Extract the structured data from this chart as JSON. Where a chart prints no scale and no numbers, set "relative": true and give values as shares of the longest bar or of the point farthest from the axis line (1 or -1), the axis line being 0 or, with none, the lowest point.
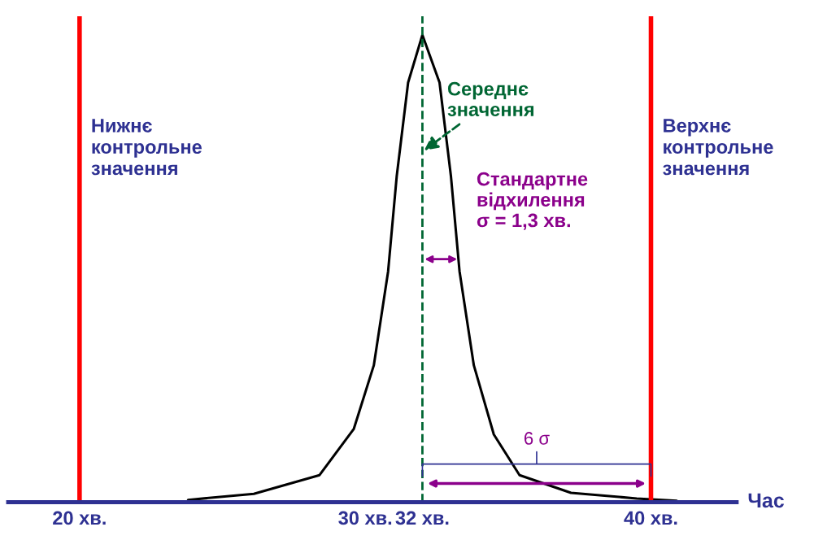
{
  "chart_data": {
    "type": "line",
    "relative": true,
    "xlabel": "Час",
    "x": [
      23.8,
      26.1,
      28.4,
      29.6,
      30.3,
      30.8,
      31.1,
      31.5,
      32.0,
      32.6,
      33.0,
      33.3,
      33.8,
      34.5,
      35.4,
      37.2,
      39.5,
      40.9
    ],
    "series": [
      {
        "color": "#000000",
        "values": [
          0.005,
          0.018,
          0.058,
          0.157,
          0.293,
          0.494,
          0.697,
          0.898,
          1.0,
          0.898,
          0.697,
          0.494,
          0.293,
          0.145,
          0.058,
          0.02,
          0.008,
          0.003
        ]
      }
    ],
    "xlim": [
      17.5,
      43
    ],
    "xticks": [
      {
        "value": 20,
        "label": "20 хв."
      },
      {
        "value": 30,
        "label": "30 хв."
      },
      {
        "value": 32,
        "label": "32 хв."
      },
      {
        "value": 40,
        "label": "40 хв."
      }
    ],
    "ref_lines": [
      {
        "axis": "x",
        "value": 20,
        "label": "Нижнє\nконтрольне\nзначення",
        "color": "#ff0000",
        "line_style": "solid"
      },
      {
        "axis": "x",
        "value": 40,
        "label": "Верхнє\nконтрольне\nзначення",
        "color": "#ff0000",
        "line_style": "solid"
      },
      {
        "axis": "x",
        "value": 32,
        "color": "#006633",
        "line_style": "dashed"
      }
    ],
    "annotations": [
      {
        "text": "Середнє\nзначення",
        "x": 32,
        "y": 0.75
      },
      {
        "text": "Стандартне\nвідхилення\nσ = 1,3 хв.",
        "x": 33.3,
        "y": 0.52
      },
      {
        "text": "6 σ",
        "x": 36,
        "y": 0.04
      }
    ],
    "grid": false,
    "legend": false,
    "marker": "none",
    "line_style": "solid"
  }
}
